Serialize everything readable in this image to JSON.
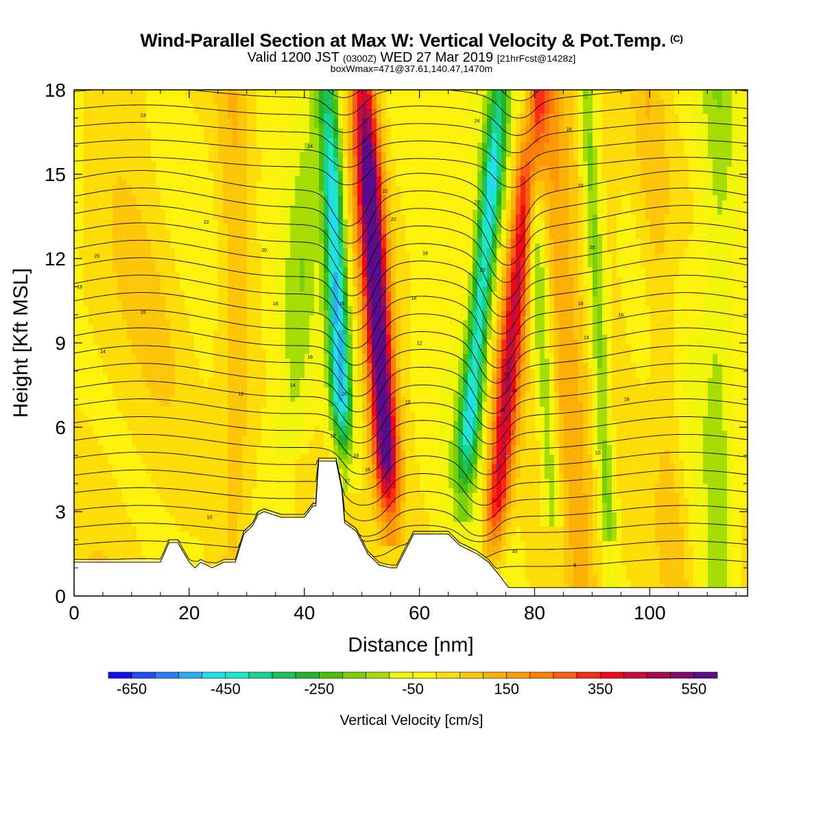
{
  "header": {
    "title": "Wind-Parallel Section at Max W: Vertical Velocity & Pot.Temp.",
    "title_mark": "(C)",
    "valid_prefix": "Valid 1200 JST",
    "valid_utc": "(0300Z)",
    "valid_date": "WED 27 Mar 2019",
    "forecast": "[21hrFcst@1428z]",
    "box_info": "boxWmax=471@37.61,140.47,1470m"
  },
  "chart_data": {
    "type": "heatmap",
    "xlabel": "Distance [nm]",
    "ylabel": "Height [Kft MSL]",
    "xlim": [
      0,
      117
    ],
    "ylim": [
      0,
      18
    ],
    "x_ticks": [
      0,
      20,
      40,
      60,
      80,
      100
    ],
    "y_ticks": [
      0,
      3,
      6,
      9,
      12,
      15,
      18
    ],
    "colorbar": {
      "title": "Vertical Velocity [cm/s]",
      "levels_min": -700,
      "levels_step": 50,
      "tick_values": [
        -650,
        -450,
        -250,
        -50,
        150,
        350,
        550
      ],
      "tick_labels": [
        "-650",
        "-450",
        "-250",
        "-50",
        "150",
        "350",
        "550"
      ],
      "colors": [
        "#1010f0",
        "#1f4ff2",
        "#2680f3",
        "#26b0f2",
        "#24dcf0",
        "#1ce8c8",
        "#17d58e",
        "#1ac45a",
        "#22b327",
        "#48c00c",
        "#7bd00a",
        "#a7dd05",
        "#f1f50a",
        "#fcf20c",
        "#fddc08",
        "#fdc609",
        "#fdb006",
        "#fd9a06",
        "#fd7f07",
        "#fd5d10",
        "#fc2c13",
        "#f20814",
        "#c80d38",
        "#a40a52",
        "#82096c",
        "#5c0b8c"
      ]
    },
    "w_features": [
      {
        "type": "updraft",
        "x_nm": 53,
        "top_kft": 18,
        "bottom_kft": 2,
        "x_at_bottom_nm": 53,
        "tilt_nm_per_kft": -0.3,
        "peak_cm_s": 620
      },
      {
        "type": "downdraft",
        "x_nm": 46,
        "top_kft": 18,
        "bottom_kft": 4,
        "x_at_bottom_nm": 46,
        "tilt_nm_per_kft": -0.2,
        "peak_cm_s": -520
      },
      {
        "type": "updraft",
        "x_nm": 76,
        "top_kft": 18,
        "bottom_kft": 0.4,
        "x_at_bottom_nm": 76,
        "tilt_nm_per_kft": 0.45,
        "peak_cm_s": 430
      },
      {
        "type": "downdraft",
        "x_nm": 70,
        "top_kft": 18,
        "bottom_kft": 3,
        "x_at_bottom_nm": 74,
        "tilt_nm_per_kft": 0.45,
        "peak_cm_s": -430
      }
    ],
    "terrain": [
      {
        "x": 0,
        "kft": 1.2
      },
      {
        "x": 15,
        "kft": 1.2
      },
      {
        "x": 16.5,
        "kft": 1.9
      },
      {
        "x": 18,
        "kft": 1.9
      },
      {
        "x": 20,
        "kft": 1.2
      },
      {
        "x": 21,
        "kft": 1.0
      },
      {
        "x": 22,
        "kft": 1.2
      },
      {
        "x": 24,
        "kft": 1.0
      },
      {
        "x": 26,
        "kft": 1.2
      },
      {
        "x": 28,
        "kft": 1.2
      },
      {
        "x": 29.5,
        "kft": 2.2
      },
      {
        "x": 31,
        "kft": 2.5
      },
      {
        "x": 32,
        "kft": 2.9
      },
      {
        "x": 33,
        "kft": 3.0
      },
      {
        "x": 36,
        "kft": 2.8
      },
      {
        "x": 40,
        "kft": 2.8
      },
      {
        "x": 41.5,
        "kft": 3.2
      },
      {
        "x": 42,
        "kft": 3.2
      },
      {
        "x": 42.5,
        "kft": 4.8
      },
      {
        "x": 45.5,
        "kft": 4.8
      },
      {
        "x": 46.5,
        "kft": 3.8
      },
      {
        "x": 47,
        "kft": 2.6
      },
      {
        "x": 49,
        "kft": 2.3
      },
      {
        "x": 51,
        "kft": 1.5
      },
      {
        "x": 53,
        "kft": 1.1
      },
      {
        "x": 55,
        "kft": 1.0
      },
      {
        "x": 56,
        "kft": 1.0
      },
      {
        "x": 57,
        "kft": 1.4
      },
      {
        "x": 59,
        "kft": 2.2
      },
      {
        "x": 65,
        "kft": 2.2
      },
      {
        "x": 67,
        "kft": 1.8
      },
      {
        "x": 70,
        "kft": 1.5
      },
      {
        "x": 72,
        "kft": 1.2
      },
      {
        "x": 74,
        "kft": 0.7
      },
      {
        "x": 75.5,
        "kft": 0.3
      },
      {
        "x": 76.5,
        "kft": 0.3
      },
      {
        "x": 117,
        "kft": 0.3
      }
    ],
    "theta_contour_labels": [
      {
        "x": 12,
        "kft": 17.1,
        "text": "24"
      },
      {
        "x": 41,
        "kft": 16.0,
        "text": "24"
      },
      {
        "x": 70,
        "kft": 16.9,
        "text": "24"
      },
      {
        "x": 86,
        "kft": 16.6,
        "text": "24"
      },
      {
        "x": 88,
        "kft": 14.6,
        "text": "22"
      },
      {
        "x": 23,
        "kft": 13.3,
        "text": "22"
      },
      {
        "x": 54,
        "kft": 14.4,
        "text": "22"
      },
      {
        "x": 55.5,
        "kft": 13.4,
        "text": "22"
      },
      {
        "x": 70,
        "kft": 14.0,
        "text": "22"
      },
      {
        "x": 4,
        "kft": 12.1,
        "text": "20"
      },
      {
        "x": 33,
        "kft": 12.3,
        "text": "20"
      },
      {
        "x": 71,
        "kft": 11.6,
        "text": "20"
      },
      {
        "x": 90,
        "kft": 12.4,
        "text": "20"
      },
      {
        "x": 61,
        "kft": 12.2,
        "text": "18"
      },
      {
        "x": 1,
        "kft": 11.0,
        "text": "18"
      },
      {
        "x": 59,
        "kft": 10.6,
        "text": "18"
      },
      {
        "x": 88,
        "kft": 10.4,
        "text": "18"
      },
      {
        "x": 12,
        "kft": 10.1,
        "text": "16"
      },
      {
        "x": 35,
        "kft": 10.4,
        "text": "16"
      },
      {
        "x": 46.5,
        "kft": 10.4,
        "text": "16"
      },
      {
        "x": 95,
        "kft": 10.0,
        "text": "16"
      },
      {
        "x": 89,
        "kft": 9.2,
        "text": "14"
      },
      {
        "x": 5,
        "kft": 8.7,
        "text": "14"
      },
      {
        "x": 41,
        "kft": 8.5,
        "text": "16"
      },
      {
        "x": 60,
        "kft": 9.0,
        "text": "12"
      },
      {
        "x": 75,
        "kft": 7.9,
        "text": "16"
      },
      {
        "x": 38,
        "kft": 7.5,
        "text": "14"
      },
      {
        "x": 29,
        "kft": 7.2,
        "text": "12"
      },
      {
        "x": 47,
        "kft": 7.2,
        "text": "20"
      },
      {
        "x": 76.5,
        "kft": 7.3,
        "text": "14"
      },
      {
        "x": 58,
        "kft": 6.9,
        "text": "10"
      },
      {
        "x": 96,
        "kft": 7.0,
        "text": "16"
      },
      {
        "x": 74.5,
        "kft": 6.6,
        "text": "16"
      },
      {
        "x": 45,
        "kft": 5.7,
        "text": "12"
      },
      {
        "x": 76,
        "kft": 5.8,
        "text": "12"
      },
      {
        "x": 49,
        "kft": 5.0,
        "text": "19"
      },
      {
        "x": 91,
        "kft": 5.1,
        "text": "10"
      },
      {
        "x": 51,
        "kft": 4.5,
        "text": "16"
      },
      {
        "x": 47.5,
        "kft": 4.1,
        "text": "17"
      },
      {
        "x": 23.5,
        "kft": 2.8,
        "text": "10"
      },
      {
        "x": 76.5,
        "kft": 1.6,
        "text": "10"
      },
      {
        "x": 87,
        "kft": 1.1,
        "text": "8"
      }
    ]
  }
}
